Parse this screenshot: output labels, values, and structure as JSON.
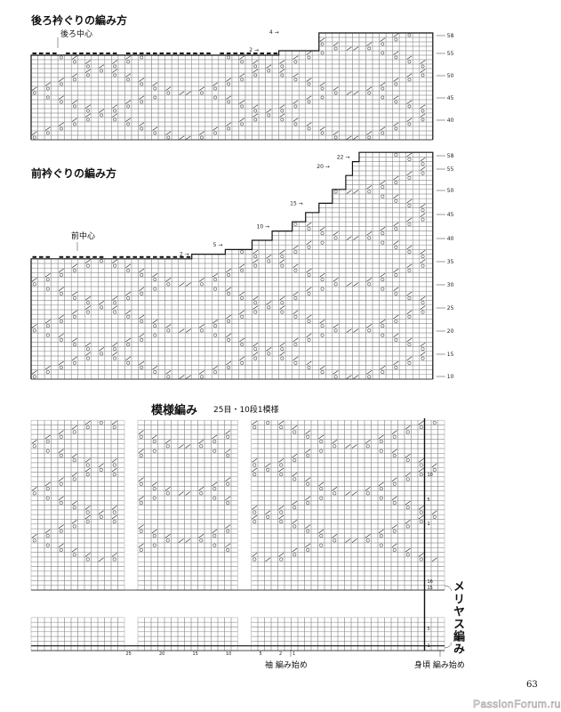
{
  "back_neck": {
    "title": "後ろ衿ぐりの編み方",
    "center_label": "後ろ中心",
    "step_labels": [
      "2",
      "4"
    ],
    "row_labels": [
      "58",
      "55",
      "50",
      "45",
      "40"
    ]
  },
  "front_neck": {
    "title": "前衿ぐりの編み方",
    "center_label": "前中心",
    "step_labels": [
      "2",
      "5",
      "10",
      "15",
      "20",
      "22"
    ],
    "row_labels": [
      "58",
      "55",
      "50",
      "45",
      "40",
      "35",
      "30",
      "25",
      "20",
      "15",
      "10"
    ]
  },
  "pattern": {
    "title": "模様編み",
    "subtitle": "25目・10段1模様",
    "row_labels": [
      "10",
      "5",
      "1",
      "16",
      "15",
      "5",
      "1"
    ],
    "stitch_labels": [
      "25",
      "20",
      "15",
      "10",
      "5",
      "2",
      "1"
    ],
    "stockinette_label": "メリヤス編み",
    "sleeve_start": "袖 編み始め",
    "body_start": "身頃 編み始め"
  },
  "page_number": "63",
  "watermark": "PassionForum.ru"
}
